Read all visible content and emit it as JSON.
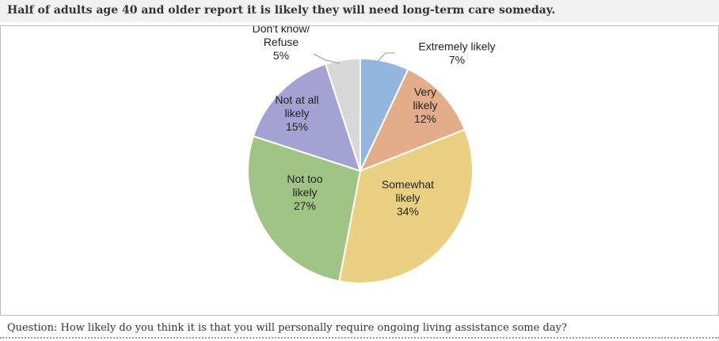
{
  "title": "Half of adults age 40 and older report it is likely they will need long-term care someday.",
  "footnote": "Question: How likely do you think it is that you will personally require ongoing living assistance some day?",
  "chart_data": {
    "type": "pie",
    "slices": [
      {
        "label": [
          "Extremely likely"
        ],
        "value": 7,
        "value_label": "7%",
        "color": "#93b6dc"
      },
      {
        "label": [
          "Very",
          "likely"
        ],
        "value": 12,
        "value_label": "12%",
        "color": "#e3ad8a"
      },
      {
        "label": [
          "Somewhat",
          "likely"
        ],
        "value": 34,
        "value_label": "34%",
        "color": "#ead182"
      },
      {
        "label": [
          "Not too",
          "likely"
        ],
        "value": 27,
        "value_label": "27%",
        "color": "#9fc484"
      },
      {
        "label": [
          "Not at all",
          "likely"
        ],
        "value": 15,
        "value_label": "15%",
        "color": "#a3a2d3"
      },
      {
        "label": [
          "Don't know/",
          "Refuse"
        ],
        "value": 5,
        "value_label": "5%",
        "color": "#d8d8d8"
      }
    ],
    "start": "12 o'clock",
    "direction": "clockwise"
  }
}
